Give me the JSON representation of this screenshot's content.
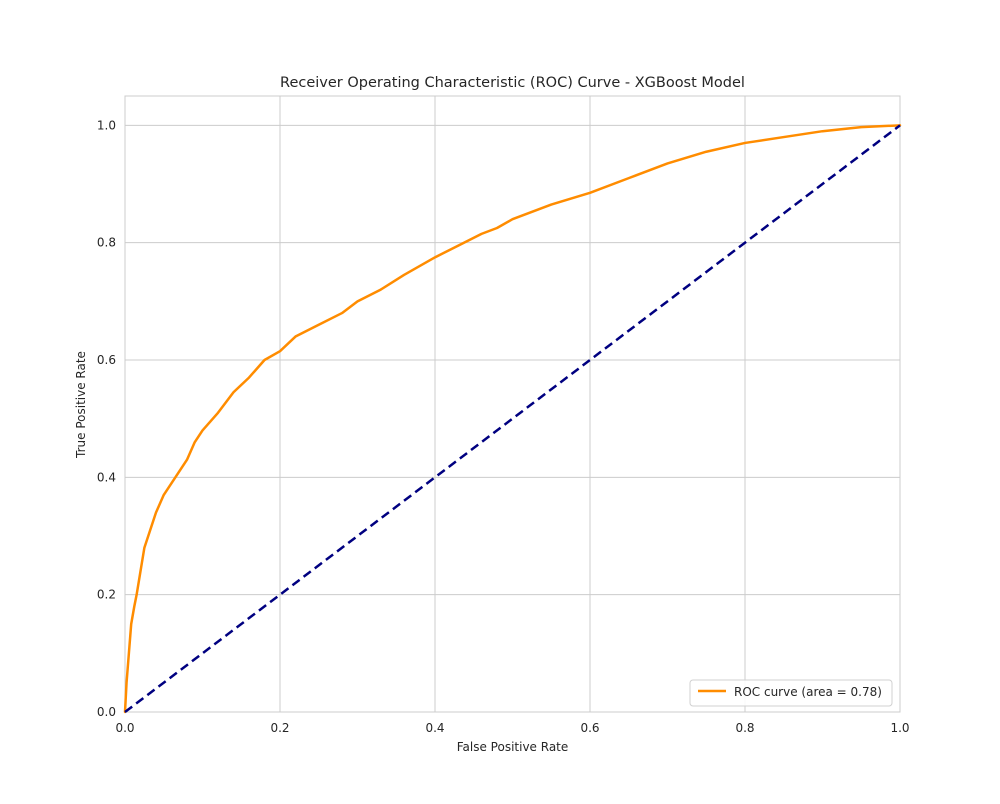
{
  "chart_data": {
    "type": "line",
    "title": "Receiver Operating Characteristic (ROC) Curve - XGBoost Model",
    "xlabel": "False Positive Rate",
    "ylabel": "True Positive Rate",
    "xlim": [
      0.0,
      1.0
    ],
    "ylim": [
      0.0,
      1.05
    ],
    "xticks": [
      0.0,
      0.2,
      0.4,
      0.6,
      0.8,
      1.0
    ],
    "yticks": [
      0.0,
      0.2,
      0.4,
      0.6,
      0.8,
      1.0
    ],
    "xtick_labels": [
      "0.0",
      "0.2",
      "0.4",
      "0.6",
      "0.8",
      "1.0"
    ],
    "ytick_labels": [
      "0.0",
      "0.2",
      "0.4",
      "0.6",
      "0.8",
      "1.0"
    ],
    "grid": true,
    "legend_position": "lower-right",
    "series": [
      {
        "name": "ROC curve (area = 0.78)",
        "color": "#ff8c00",
        "style": "solid",
        "x": [
          0.0,
          0.002,
          0.005,
          0.008,
          0.012,
          0.015,
          0.02,
          0.025,
          0.03,
          0.04,
          0.05,
          0.06,
          0.07,
          0.08,
          0.09,
          0.1,
          0.12,
          0.14,
          0.16,
          0.18,
          0.2,
          0.22,
          0.25,
          0.28,
          0.3,
          0.33,
          0.36,
          0.4,
          0.43,
          0.46,
          0.48,
          0.5,
          0.55,
          0.6,
          0.65,
          0.7,
          0.75,
          0.8,
          0.85,
          0.9,
          0.95,
          1.0
        ],
        "y": [
          0.0,
          0.05,
          0.1,
          0.15,
          0.18,
          0.2,
          0.24,
          0.28,
          0.3,
          0.34,
          0.37,
          0.39,
          0.41,
          0.43,
          0.46,
          0.48,
          0.51,
          0.545,
          0.57,
          0.6,
          0.615,
          0.64,
          0.66,
          0.68,
          0.7,
          0.72,
          0.745,
          0.775,
          0.795,
          0.815,
          0.825,
          0.84,
          0.865,
          0.885,
          0.91,
          0.935,
          0.955,
          0.97,
          0.98,
          0.99,
          0.997,
          1.0
        ]
      },
      {
        "name": "",
        "color": "#000080",
        "style": "dashed",
        "x": [
          0.0,
          1.0
        ],
        "y": [
          0.0,
          1.0
        ]
      }
    ]
  }
}
